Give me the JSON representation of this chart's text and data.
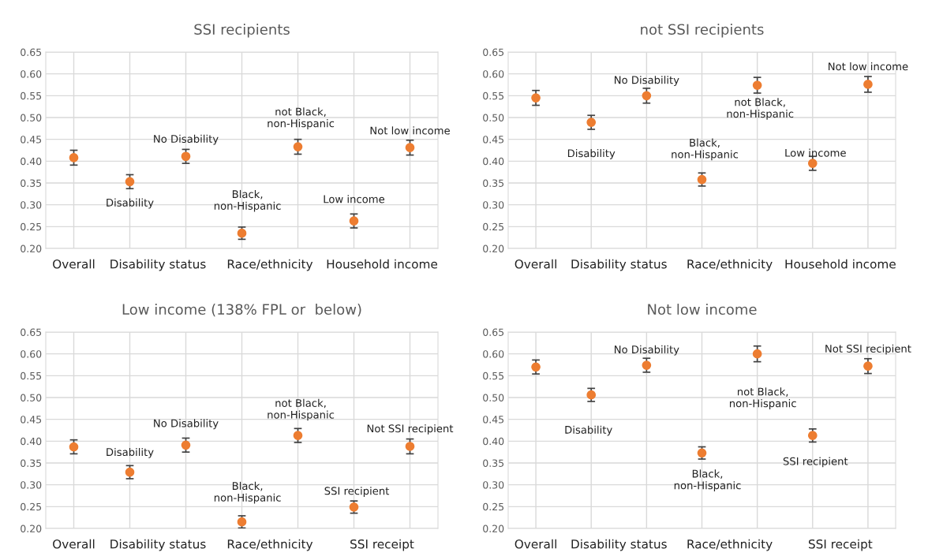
{
  "chart_data": [
    {
      "type": "scatter",
      "title": "SSI recipients",
      "categories": [
        null,
        null,
        null,
        null,
        null,
        null,
        null
      ],
      "series": [
        {
          "color": "#ed7d31",
          "values": [
            0.408,
            0.353,
            0.411,
            0.235,
            0.433,
            0.263,
            0.431
          ],
          "errors": [
            0.017,
            0.016,
            0.016,
            0.014,
            0.017,
            0.016,
            0.017
          ]
        }
      ],
      "ylim": [
        0.2,
        0.65
      ],
      "yticks": [
        {
          "value": 0.2,
          "label": "0.20"
        },
        {
          "value": 0.25,
          "label": "0.25"
        },
        {
          "value": 0.3,
          "label": "0.30"
        },
        {
          "value": 0.35,
          "label": "0.35"
        },
        {
          "value": 0.4,
          "label": "0.40"
        },
        {
          "value": 0.45,
          "label": "0.45"
        },
        {
          "value": 0.5,
          "label": "0.50"
        },
        {
          "value": 0.55,
          "label": "0.55"
        },
        {
          "value": 0.6,
          "label": "0.60"
        },
        {
          "value": 0.65,
          "label": "0.65"
        }
      ],
      "grid": true,
      "marker": "circle",
      "annotations": [
        "Overall",
        "Disability status",
        "Race/ethnicity",
        "Household income",
        "Disability",
        "No Disability",
        "Black,\nnon-Hispanic",
        "not Black,\nnon-Hispanic",
        "Low income",
        "Not low income"
      ]
    },
    {
      "type": "scatter",
      "title": "not SSI recipients",
      "categories": [
        null,
        null,
        null,
        null,
        null,
        null,
        null
      ],
      "series": [
        {
          "color": "#ed7d31",
          "values": [
            0.545,
            0.489,
            0.55,
            0.358,
            0.574,
            0.395,
            0.576
          ],
          "errors": [
            0.017,
            0.016,
            0.017,
            0.015,
            0.018,
            0.016,
            0.018
          ]
        }
      ],
      "ylim": [
        0.2,
        0.65
      ],
      "yticks": [
        {
          "value": 0.2,
          "label": "0.20"
        },
        {
          "value": 0.25,
          "label": "0.25"
        },
        {
          "value": 0.3,
          "label": "0.30"
        },
        {
          "value": 0.35,
          "label": "0.35"
        },
        {
          "value": 0.4,
          "label": "0.40"
        },
        {
          "value": 0.45,
          "label": "0.45"
        },
        {
          "value": 0.5,
          "label": "0.50"
        },
        {
          "value": 0.55,
          "label": "0.55"
        },
        {
          "value": 0.6,
          "label": "0.60"
        },
        {
          "value": 0.65,
          "label": "0.65"
        }
      ],
      "grid": true,
      "marker": "circle",
      "annotations": [
        "Overall",
        "Disability status",
        "Race/ethnicity",
        "Household income",
        "Disability",
        "No Disability",
        "Black,\nnon-Hispanic",
        "not Black,\nnon-Hispanic",
        "Low income",
        "Not low income"
      ]
    },
    {
      "type": "scatter",
      "title": "Low income (138% FPL or  below)",
      "categories": [
        null,
        null,
        null,
        null,
        null,
        null,
        null
      ],
      "series": [
        {
          "color": "#ed7d31",
          "values": [
            0.387,
            0.329,
            0.391,
            0.215,
            0.413,
            0.249,
            0.388
          ],
          "errors": [
            0.016,
            0.015,
            0.016,
            0.014,
            0.016,
            0.014,
            0.017
          ]
        }
      ],
      "ylim": [
        0.2,
        0.65
      ],
      "yticks": [
        {
          "value": 0.2,
          "label": "0.20"
        },
        {
          "value": 0.25,
          "label": "0.25"
        },
        {
          "value": 0.3,
          "label": "0.30"
        },
        {
          "value": 0.35,
          "label": "0.35"
        },
        {
          "value": 0.4,
          "label": "0.40"
        },
        {
          "value": 0.45,
          "label": "0.45"
        },
        {
          "value": 0.5,
          "label": "0.50"
        },
        {
          "value": 0.55,
          "label": "0.55"
        },
        {
          "value": 0.6,
          "label": "0.60"
        },
        {
          "value": 0.65,
          "label": "0.65"
        }
      ],
      "grid": true,
      "marker": "circle",
      "annotations": [
        "Overall",
        "Disability status",
        "Race/ethnicity",
        "SSI receipt",
        "Disability",
        "No Disability",
        "Black,\nnon-Hispanic",
        "not Black,\nnon-Hispanic",
        "SSI recipient",
        "Not SSI recipient"
      ]
    },
    {
      "type": "scatter",
      "title": "Not low income",
      "categories": [
        null,
        null,
        null,
        null,
        null,
        null,
        null
      ],
      "series": [
        {
          "color": "#ed7d31",
          "values": [
            0.57,
            0.506,
            0.574,
            0.373,
            0.6,
            0.413,
            0.572
          ],
          "errors": [
            0.016,
            0.015,
            0.016,
            0.014,
            0.018,
            0.015,
            0.017
          ]
        }
      ],
      "ylim": [
        0.2,
        0.65
      ],
      "yticks": [
        {
          "value": 0.2,
          "label": "0.20"
        },
        {
          "value": 0.25,
          "label": "0.25"
        },
        {
          "value": 0.3,
          "label": "0.30"
        },
        {
          "value": 0.35,
          "label": "0.35"
        },
        {
          "value": 0.4,
          "label": "0.40"
        },
        {
          "value": 0.45,
          "label": "0.45"
        },
        {
          "value": 0.5,
          "label": "0.50"
        },
        {
          "value": 0.55,
          "label": "0.55"
        },
        {
          "value": 0.6,
          "label": "0.60"
        },
        {
          "value": 0.65,
          "label": "0.65"
        }
      ],
      "grid": true,
      "marker": "circle",
      "annotations": [
        "Overall",
        "Disability status",
        "Race/ethnicity",
        "SSI receipt",
        "Disability",
        "No Disability",
        "Black,\nnon-Hispanic",
        "not Black,\nnon-Hispanic",
        "SSI recipient",
        "Not SSI recipient"
      ]
    }
  ]
}
